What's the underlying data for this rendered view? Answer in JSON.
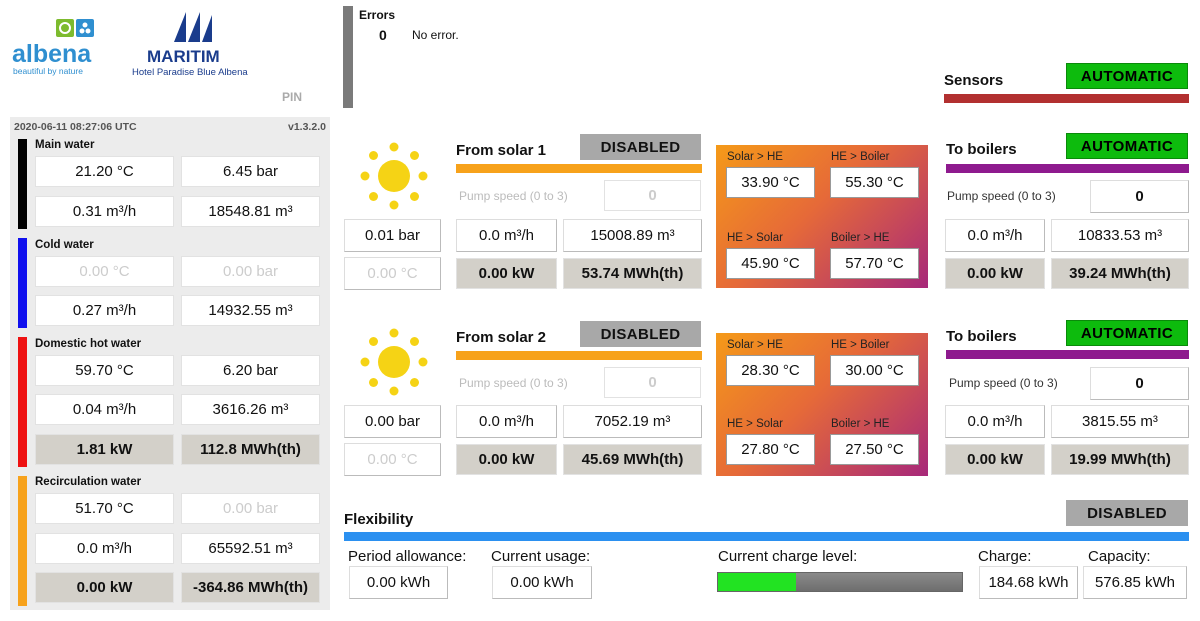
{
  "brand": {
    "albena_name": "albena",
    "albena_tagline": "beautiful by nature",
    "maritim_name": "MARITIM",
    "maritim_sub": "Hotel Paradise Blue Albena",
    "pin_label": "PIN"
  },
  "status": {
    "datetime": "2020-06-11 08:27:06 UTC",
    "version": "v1.3.2.0"
  },
  "errors": {
    "title": "Errors",
    "count": "0",
    "message": "No error."
  },
  "sensors": {
    "title": "Sensors",
    "mode": "AUTOMATIC"
  },
  "water": {
    "main": {
      "title": "Main water",
      "color": "#000000",
      "temp": "21.20 °C",
      "pressure": "6.45 bar",
      "flow": "0.31 m³/h",
      "volume": "18548.81 m³"
    },
    "cold": {
      "title": "Cold water",
      "color": "#1010ee",
      "temp": "0.00 °C",
      "pressure": "0.00 bar",
      "flow": "0.27 m³/h",
      "volume": "14932.55 m³"
    },
    "dhw": {
      "title": "Domestic hot water",
      "color": "#ee1111",
      "temp": "59.70 °C",
      "pressure": "6.20 bar",
      "flow": "0.04 m³/h",
      "volume": "3616.26 m³",
      "power": "1.81 kW",
      "energy": "112.8 MWh(th)"
    },
    "recirc": {
      "title": "Recirculation water",
      "color": "#f7a21b",
      "temp": "51.70 °C",
      "pressure": "0.00 bar",
      "flow": "0.0 m³/h",
      "volume": "65592.51 m³",
      "power": "0.00 kW",
      "energy": "-364.86 MWh(th)"
    }
  },
  "solar1": {
    "title": "From solar 1",
    "mode": "DISABLED",
    "pump_label": "Pump speed (0 to 3)",
    "pump_value": "0",
    "pressure": "0.01 bar",
    "temp": "0.00 °C",
    "flow": "0.0 m³/h",
    "volume": "15008.89 m³",
    "power": "0.00 kW",
    "energy": "53.74 MWh(th)",
    "he": {
      "solar_he_label": "Solar > HE",
      "solar_he": "33.90 °C",
      "he_boiler_label": "HE > Boiler",
      "he_boiler": "55.30 °C",
      "he_solar_label": "HE > Solar",
      "he_solar": "45.90 °C",
      "boiler_he_label": "Boiler > HE",
      "boiler_he": "57.70 °C"
    },
    "boilers": {
      "title": "To boilers",
      "mode": "AUTOMATIC",
      "pump_label": "Pump speed (0 to 3)",
      "pump_value": "0",
      "flow": "0.0 m³/h",
      "volume": "10833.53 m³",
      "power": "0.00 kW",
      "energy": "39.24 MWh(th)"
    }
  },
  "solar2": {
    "title": "From solar 2",
    "mode": "DISABLED",
    "pump_label": "Pump speed (0 to 3)",
    "pump_value": "0",
    "pressure": "0.00 bar",
    "temp": "0.00 °C",
    "flow": "0.0 m³/h",
    "volume": "7052.19 m³",
    "power": "0.00 kW",
    "energy": "45.69 MWh(th)",
    "he": {
      "solar_he_label": "Solar > HE",
      "solar_he": "28.30 °C",
      "he_boiler_label": "HE > Boiler",
      "he_boiler": "30.00 °C",
      "he_solar_label": "HE > Solar",
      "he_solar": "27.80 °C",
      "boiler_he_label": "Boiler > HE",
      "boiler_he": "27.50 °C"
    },
    "boilers": {
      "title": "To boilers",
      "mode": "AUTOMATIC",
      "pump_label": "Pump speed (0 to 3)",
      "pump_value": "0",
      "flow": "0.0 m³/h",
      "volume": "3815.55 m³",
      "power": "0.00 kW",
      "energy": "19.99 MWh(th)"
    }
  },
  "flexibility": {
    "title": "Flexibility",
    "mode": "DISABLED",
    "period_label": "Period allowance:",
    "period_value": "0.00 kWh",
    "usage_label": "Current usage:",
    "usage_value": "0.00 kWh",
    "charge_level_label": "Current charge level:",
    "charge_level_fraction": 0.32,
    "charge_label": "Charge:",
    "charge_value": "184.68 kWh",
    "capacity_label": "Capacity:",
    "capacity_value": "576.85 kWh"
  },
  "colors": {
    "green": "#0dbb0d",
    "orange_bar": "#f7a21b",
    "purple_bar": "#8e1a8e",
    "sensors_bar": "#b23030",
    "flex_bar": "#2b90f0",
    "sun": "#f5d315"
  }
}
